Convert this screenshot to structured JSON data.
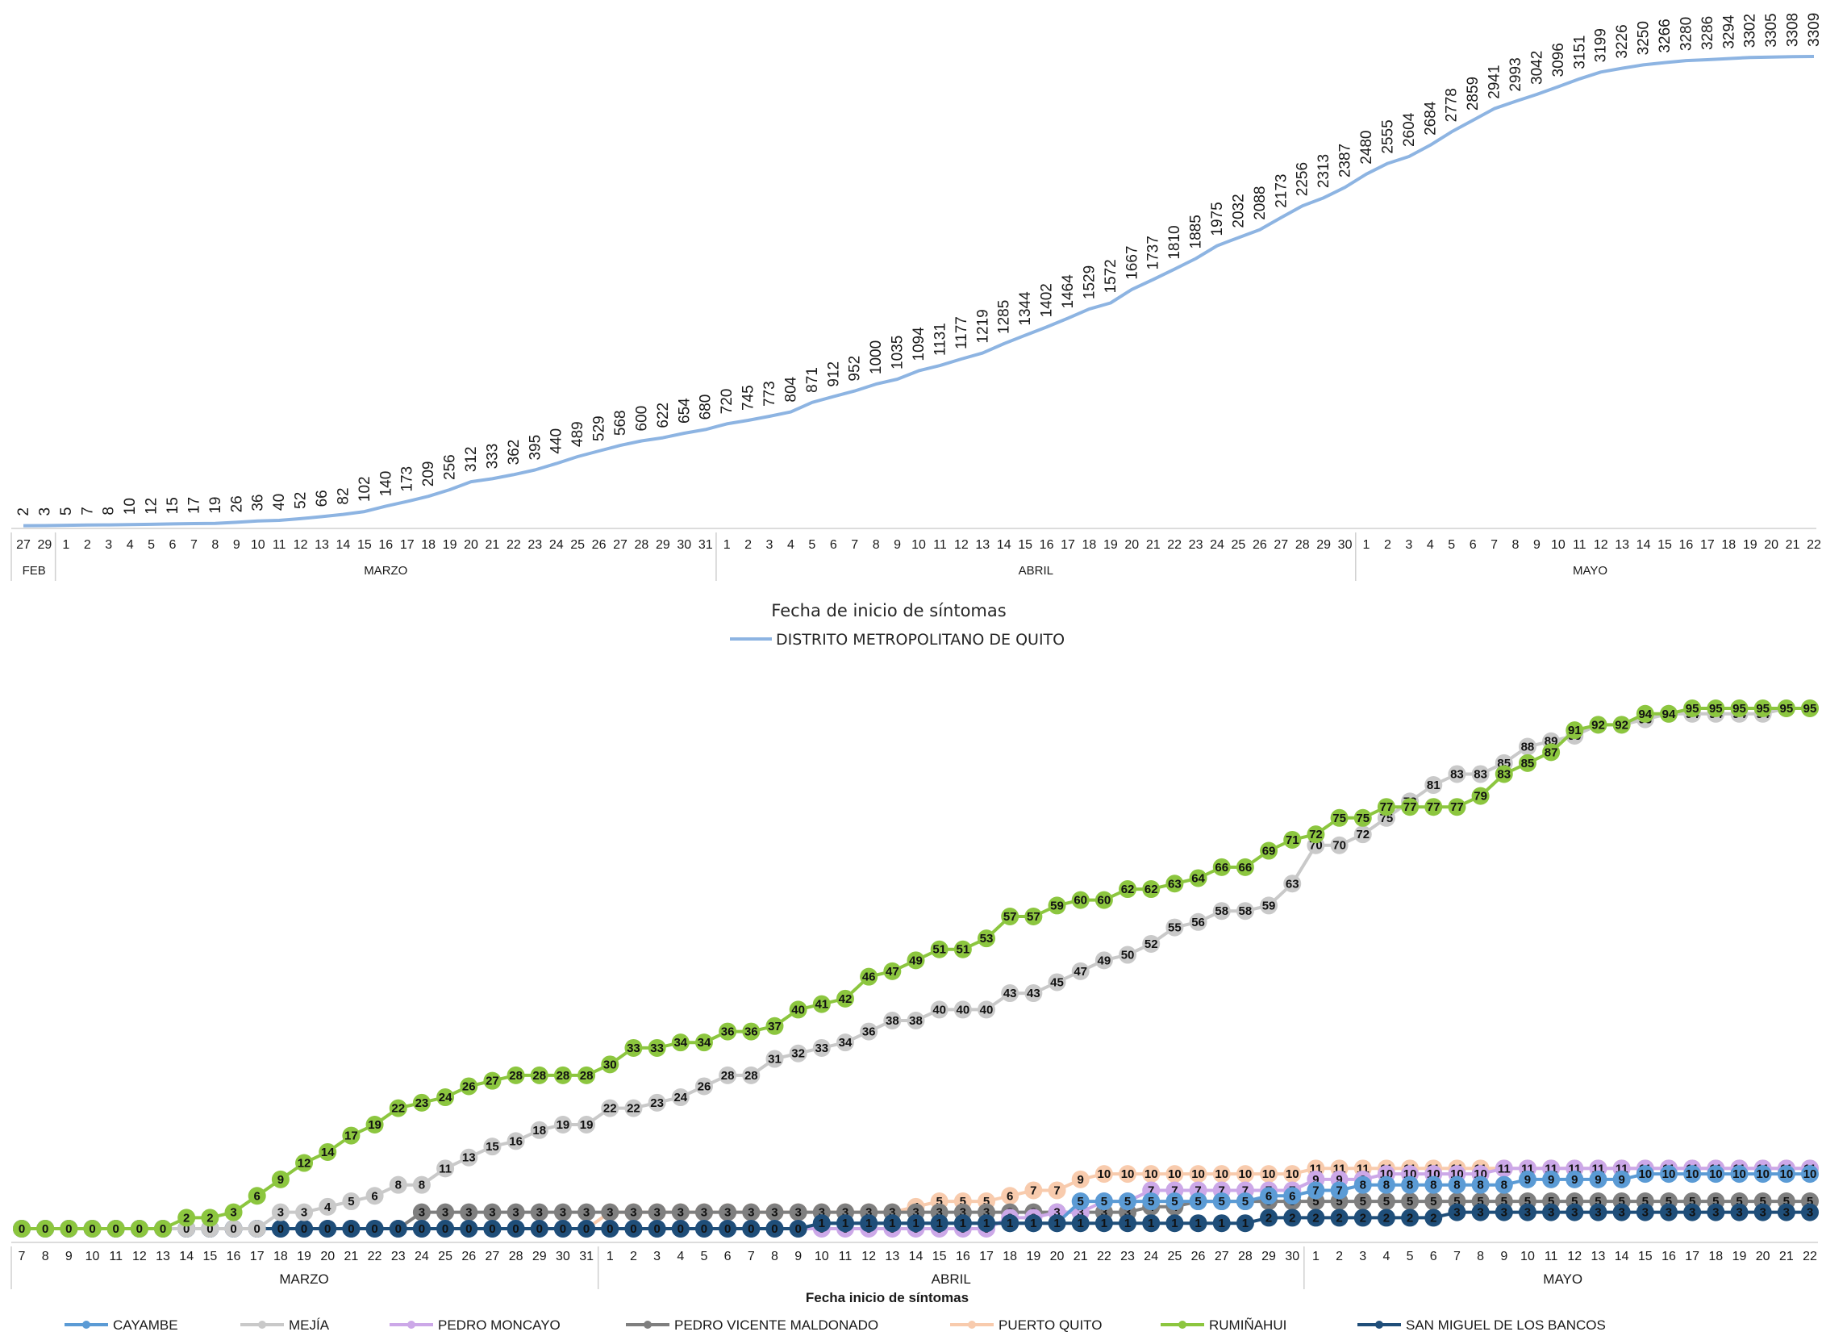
{
  "chart_data": [
    {
      "type": "line",
      "xlabel": "Fecha de inicio de síntomas",
      "month_labels": [
        "FEB",
        "MARZO",
        "ABRIL",
        "MAYO"
      ],
      "x": [
        "27",
        "29",
        "1",
        "2",
        "3",
        "4",
        "5",
        "6",
        "7",
        "8",
        "9",
        "10",
        "11",
        "12",
        "13",
        "14",
        "15",
        "16",
        "17",
        "18",
        "19",
        "20",
        "21",
        "22",
        "23",
        "24",
        "25",
        "26",
        "27",
        "28",
        "29",
        "30",
        "31",
        "1",
        "2",
        "3",
        "4",
        "5",
        "6",
        "7",
        "8",
        "9",
        "10",
        "11",
        "12",
        "13",
        "14",
        "15",
        "16",
        "17",
        "18",
        "19",
        "20",
        "21",
        "22",
        "23",
        "24",
        "25",
        "26",
        "27",
        "28",
        "29",
        "30",
        "1",
        "2",
        "3",
        "4",
        "5",
        "6",
        "7",
        "8",
        "9",
        "10",
        "11",
        "12",
        "13",
        "14",
        "15",
        "16",
        "17",
        "18",
        "19",
        "20",
        "21",
        "22"
      ],
      "month_of_x": [
        "FEB",
        "FEB",
        "MARZO",
        "MARZO",
        "MARZO",
        "MARZO",
        "MARZO",
        "MARZO",
        "MARZO",
        "MARZO",
        "MARZO",
        "MARZO",
        "MARZO",
        "MARZO",
        "MARZO",
        "MARZO",
        "MARZO",
        "MARZO",
        "MARZO",
        "MARZO",
        "MARZO",
        "MARZO",
        "MARZO",
        "MARZO",
        "MARZO",
        "MARZO",
        "MARZO",
        "MARZO",
        "MARZO",
        "MARZO",
        "MARZO",
        "MARZO",
        "MARZO",
        "ABRIL",
        "ABRIL",
        "ABRIL",
        "ABRIL",
        "ABRIL",
        "ABRIL",
        "ABRIL",
        "ABRIL",
        "ABRIL",
        "ABRIL",
        "ABRIL",
        "ABRIL",
        "ABRIL",
        "ABRIL",
        "ABRIL",
        "ABRIL",
        "ABRIL",
        "ABRIL",
        "ABRIL",
        "ABRIL",
        "ABRIL",
        "ABRIL",
        "ABRIL",
        "ABRIL",
        "ABRIL",
        "ABRIL",
        "ABRIL",
        "ABRIL",
        "ABRIL",
        "ABRIL",
        "MAYO",
        "MAYO",
        "MAYO",
        "MAYO",
        "MAYO",
        "MAYO",
        "MAYO",
        "MAYO",
        "MAYO",
        "MAYO",
        "MAYO",
        "MAYO",
        "MAYO",
        "MAYO",
        "MAYO",
        "MAYO",
        "MAYO",
        "MAYO",
        "MAYO",
        "MAYO",
        "MAYO",
        "MAYO"
      ],
      "series": [
        {
          "name": "DISTRITO METROPOLITANO DE QUITO",
          "color": "#8DB4E2",
          "values": [
            2,
            3,
            5,
            7,
            8,
            10,
            12,
            15,
            17,
            19,
            26,
            36,
            40,
            52,
            66,
            82,
            102,
            140,
            173,
            209,
            256,
            312,
            333,
            362,
            395,
            440,
            489,
            529,
            568,
            600,
            622,
            654,
            680,
            720,
            745,
            773,
            804,
            871,
            912,
            952,
            1000,
            1035,
            1094,
            1131,
            1177,
            1219,
            1285,
            1344,
            1402,
            1464,
            1529,
            1572,
            1667,
            1737,
            1810,
            1885,
            1975,
            2032,
            2088,
            2173,
            2256,
            2313,
            2387,
            2480,
            2555,
            2604,
            2684,
            2778,
            2859,
            2941,
            2993,
            3042,
            3096,
            3151,
            3199,
            3226,
            3250,
            3266,
            3280,
            3286,
            3294,
            3302,
            3305,
            3308,
            3309
          ]
        }
      ],
      "ylim": [
        0,
        3400
      ]
    },
    {
      "type": "line",
      "xlabel": "Fecha inicio de síntomas",
      "month_labels": [
        "MARZO",
        "ABRIL",
        "MAYO"
      ],
      "x": [
        "7",
        "8",
        "9",
        "10",
        "11",
        "12",
        "13",
        "14",
        "15",
        "16",
        "17",
        "18",
        "19",
        "20",
        "21",
        "22",
        "23",
        "24",
        "25",
        "26",
        "27",
        "28",
        "29",
        "30",
        "31",
        "1",
        "2",
        "3",
        "4",
        "5",
        "6",
        "7",
        "8",
        "9",
        "10",
        "11",
        "12",
        "13",
        "14",
        "15",
        "16",
        "17",
        "18",
        "19",
        "20",
        "21",
        "22",
        "23",
        "24",
        "25",
        "26",
        "27",
        "28",
        "29",
        "30",
        "1",
        "2",
        "3",
        "4",
        "5",
        "6",
        "7",
        "8",
        "9",
        "10",
        "11",
        "12",
        "13",
        "14",
        "15",
        "16",
        "17",
        "18",
        "19",
        "20",
        "21",
        "22"
      ],
      "series": [
        {
          "name": "CAYAMBE",
          "color": "#5B9BD5",
          "values": [
            0,
            0,
            0,
            0,
            0,
            0,
            0,
            0,
            0,
            0,
            0,
            0,
            0,
            0,
            0,
            0,
            0,
            0,
            0,
            0,
            0,
            0,
            0,
            0,
            0,
            0,
            0,
            0,
            0,
            0,
            0,
            0,
            0,
            0,
            1,
            1,
            1,
            1,
            1,
            1,
            1,
            1,
            1,
            1,
            1,
            5,
            5,
            5,
            5,
            5,
            5,
            5,
            5,
            6,
            6,
            7,
            7,
            8,
            8,
            8,
            8,
            8,
            8,
            8,
            9,
            9,
            9,
            9,
            9,
            10,
            10,
            10,
            10,
            10,
            10,
            10,
            10
          ]
        },
        {
          "name": "MEJÍA",
          "color": "#C9C9C9",
          "values": [
            0,
            0,
            0,
            0,
            0,
            0,
            0,
            0,
            0,
            0,
            0,
            3,
            3,
            4,
            5,
            6,
            8,
            8,
            11,
            13,
            15,
            16,
            18,
            19,
            19,
            22,
            22,
            23,
            24,
            26,
            28,
            28,
            31,
            32,
            33,
            34,
            36,
            38,
            38,
            40,
            40,
            40,
            43,
            43,
            45,
            47,
            49,
            50,
            52,
            55,
            56,
            58,
            58,
            59,
            63,
            70,
            70,
            72,
            75,
            78,
            81,
            83,
            83,
            85,
            88,
            89,
            90,
            92,
            92,
            93,
            94,
            94,
            94,
            94,
            94,
            95,
            95
          ]
        },
        {
          "name": "PEDRO MONCAYO",
          "color": "#CCA8E8",
          "values": [
            0,
            0,
            0,
            0,
            0,
            0,
            0,
            0,
            0,
            0,
            0,
            0,
            0,
            0,
            0,
            0,
            0,
            0,
            0,
            0,
            0,
            0,
            0,
            0,
            0,
            0,
            0,
            0,
            0,
            0,
            0,
            0,
            0,
            0,
            0,
            0,
            0,
            0,
            0,
            0,
            0,
            0,
            2,
            2,
            3,
            3,
            5,
            5,
            7,
            7,
            7,
            7,
            7,
            7,
            7,
            9,
            9,
            9,
            10,
            10,
            10,
            10,
            10,
            11,
            11,
            11,
            11,
            11,
            11,
            11,
            11,
            11,
            11,
            11,
            11,
            11,
            11
          ]
        },
        {
          "name": "PEDRO VICENTE MALDONADO",
          "color": "#7F7F7F",
          "values": [
            0,
            0,
            0,
            0,
            0,
            0,
            0,
            0,
            0,
            0,
            0,
            0,
            0,
            0,
            0,
            0,
            0,
            3,
            3,
            3,
            3,
            3,
            3,
            3,
            3,
            3,
            3,
            3,
            3,
            3,
            3,
            3,
            3,
            3,
            3,
            3,
            3,
            3,
            3,
            3,
            3,
            3,
            3,
            3,
            3,
            3,
            3,
            3,
            4,
            4,
            5,
            5,
            5,
            5,
            5,
            5,
            5,
            5,
            5,
            5,
            5,
            5,
            5,
            5,
            5,
            5,
            5,
            5,
            5,
            5,
            5,
            5,
            5,
            5,
            5,
            5,
            5
          ]
        },
        {
          "name": "PUERTO QUITO",
          "color": "#F8CBAD",
          "values": [
            0,
            0,
            0,
            0,
            0,
            0,
            0,
            0,
            0,
            0,
            0,
            0,
            0,
            0,
            0,
            0,
            0,
            0,
            0,
            0,
            0,
            0,
            0,
            0,
            0,
            3,
            3,
            3,
            3,
            3,
            3,
            3,
            3,
            3,
            3,
            3,
            3,
            3,
            4,
            5,
            5,
            5,
            6,
            7,
            7,
            9,
            10,
            10,
            10,
            10,
            10,
            10,
            10,
            10,
            10,
            11,
            11,
            11,
            11,
            11,
            11,
            11,
            11,
            11,
            11,
            11,
            11,
            11,
            11,
            11,
            11,
            11,
            11,
            11,
            11,
            11,
            11
          ]
        },
        {
          "name": "RUMIÑAHUI",
          "color": "#8CC63F",
          "values": [
            0,
            0,
            0,
            0,
            0,
            0,
            0,
            2,
            2,
            3,
            6,
            9,
            12,
            14,
            17,
            19,
            22,
            23,
            24,
            26,
            27,
            28,
            28,
            28,
            28,
            30,
            33,
            33,
            34,
            34,
            36,
            36,
            37,
            40,
            41,
            42,
            46,
            47,
            49,
            51,
            51,
            53,
            57,
            57,
            59,
            60,
            60,
            62,
            62,
            63,
            64,
            66,
            66,
            69,
            71,
            72,
            75,
            75,
            77,
            77,
            77,
            77,
            79,
            83,
            85,
            87,
            91,
            92,
            92,
            94,
            94,
            95,
            95,
            95,
            95,
            95,
            95
          ]
        },
        {
          "name": "SAN MIGUEL DE LOS BANCOS",
          "color": "#1F4E79",
          "values": [
            0,
            0,
            0,
            0,
            0,
            0,
            0,
            0,
            0,
            0,
            0,
            0,
            0,
            0,
            0,
            0,
            0,
            0,
            0,
            0,
            0,
            0,
            0,
            0,
            0,
            0,
            0,
            0,
            0,
            0,
            0,
            0,
            0,
            0,
            1,
            1,
            1,
            1,
            1,
            1,
            1,
            1,
            1,
            1,
            1,
            1,
            1,
            1,
            1,
            1,
            1,
            1,
            1,
            2,
            2,
            2,
            2,
            2,
            2,
            2,
            2,
            3,
            3,
            3,
            3,
            3,
            3,
            3,
            3,
            3,
            3,
            3,
            3,
            3,
            3,
            3,
            3
          ]
        }
      ],
      "ylim": [
        0,
        100
      ]
    }
  ]
}
